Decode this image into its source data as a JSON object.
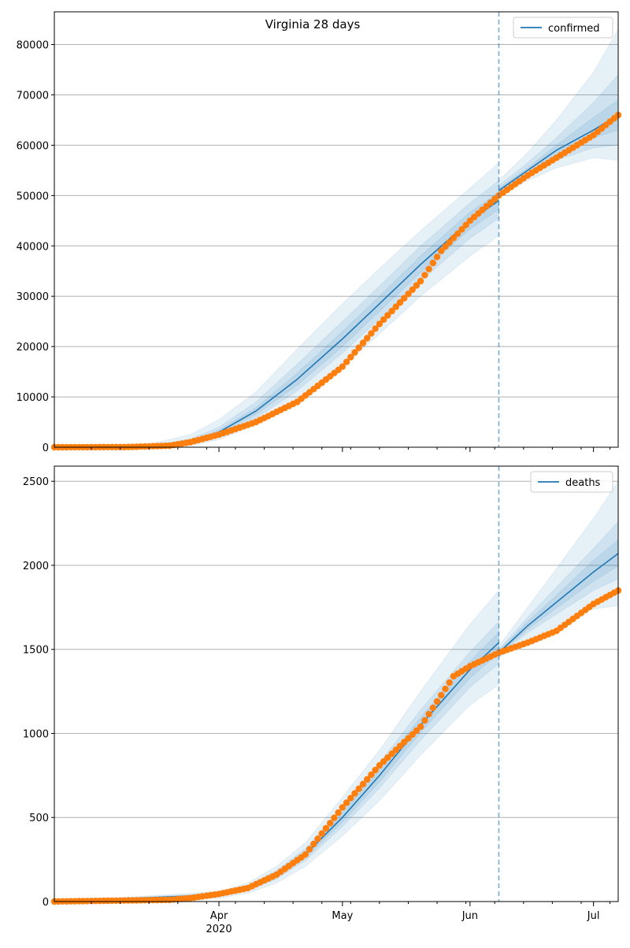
{
  "figure": {
    "title": "Virginia 28 days"
  },
  "colors": {
    "model_line": "#1f77b4",
    "observed_points": "#ff7f0e",
    "band": "#1f77b4",
    "grid": "#b0b0b0",
    "cutoff_line": "#1f77b4",
    "axes": "#000000"
  },
  "chart_data": [
    {
      "type": "line",
      "legend_label": "confirmed",
      "legend_position": "upper right",
      "grid": "horizontal",
      "x_range": [
        "2020-02-21",
        "2020-07-07"
      ],
      "ylim": [
        0,
        86500
      ],
      "y_ticks": [
        0,
        10000,
        20000,
        30000,
        40000,
        50000,
        60000,
        70000,
        80000
      ],
      "y_tick_labels": [
        "0",
        "10000",
        "20000",
        "30000",
        "40000",
        "50000",
        "60000",
        "70000",
        "80000"
      ],
      "x_ticks": [],
      "cutoff_date": "2020-06-08",
      "model_fit": {
        "x": [
          "2020-02-21",
          "2020-03-15",
          "2020-03-25",
          "2020-04-01",
          "2020-04-10",
          "2020-04-20",
          "2020-05-01",
          "2020-05-10",
          "2020-05-20",
          "2020-06-01",
          "2020-06-08"
        ],
        "y": [
          0,
          150,
          1000,
          3000,
          7200,
          13500,
          21500,
          28500,
          36300,
          45000,
          49000
        ]
      },
      "projection": {
        "x": [
          "2020-06-08",
          "2020-06-15",
          "2020-06-22",
          "2020-07-01",
          "2020-07-07"
        ],
        "y": [
          51000,
          55000,
          59000,
          63000,
          66000
        ]
      },
      "uncertainty_bands": [
        {
          "level": "outer",
          "fit_lower": [
            0,
            0,
            300,
            1500,
            4500,
            9000,
            16000,
            22500,
            30000,
            38000,
            42000
          ],
          "fit_upper": [
            0,
            600,
            2500,
            5500,
            11000,
            19500,
            28500,
            35500,
            43000,
            51500,
            56500
          ],
          "proj_lower": [
            50000,
            53000,
            55500,
            57500,
            57000
          ],
          "proj_upper": [
            53000,
            58500,
            65000,
            74500,
            83000
          ]
        },
        {
          "level": "middle",
          "fit_lower": [
            0,
            50,
            600,
            2200,
            5800,
            11200,
            18700,
            25500,
            33000,
            41500,
            45500
          ],
          "fit_upper": [
            0,
            300,
            1600,
            4000,
            9000,
            16500,
            25000,
            32000,
            40000,
            48500,
            53000
          ],
          "proj_lower": [
            50500,
            54000,
            57000,
            59500,
            60000
          ],
          "proj_upper": [
            52000,
            56500,
            61500,
            68500,
            74000
          ]
        },
        {
          "level": "inner",
          "fit_lower": [
            0,
            100,
            800,
            2600,
            6500,
            12300,
            20000,
            27000,
            34700,
            43300,
            47300
          ],
          "fit_upper": [
            0,
            200,
            1200,
            3400,
            7900,
            14700,
            23000,
            30000,
            38000,
            46700,
            50700
          ],
          "proj_lower": [
            50800,
            54500,
            58000,
            61500,
            63000
          ],
          "proj_upper": [
            51500,
            55500,
            60000,
            65500,
            69000
          ]
        }
      ],
      "observed": {
        "x": [
          "2020-02-21",
          "2020-03-10",
          "2020-03-20",
          "2020-03-25",
          "2020-04-01",
          "2020-04-10",
          "2020-04-20",
          "2020-05-01",
          "2020-05-10",
          "2020-05-20",
          "2020-05-25",
          "2020-06-01",
          "2020-06-08",
          "2020-06-15",
          "2020-06-22",
          "2020-07-01",
          "2020-07-07"
        ],
        "y": [
          0,
          40,
          300,
          1000,
          2500,
          5000,
          9000,
          16000,
          24500,
          33000,
          39000,
          45000,
          50000,
          54000,
          57500,
          62000,
          66000
        ]
      }
    },
    {
      "type": "line",
      "legend_label": "deaths",
      "legend_position": "upper right",
      "grid": "horizontal",
      "x_range": [
        "2020-02-21",
        "2020-07-07"
      ],
      "ylim": [
        0,
        2590
      ],
      "y_ticks": [
        0,
        500,
        1000,
        1500,
        2000,
        2500
      ],
      "y_tick_labels": [
        "0",
        "500",
        "1000",
        "1500",
        "2000",
        "2500"
      ],
      "x_ticks": [
        "2020-04-01",
        "2020-05-01",
        "2020-06-01",
        "2020-07-01"
      ],
      "x_tick_labels": [
        "Apr\n2020",
        "May",
        "Jun",
        "Jul"
      ],
      "cutoff_date": "2020-06-08",
      "model_fit": {
        "x": [
          "2020-02-21",
          "2020-04-01",
          "2020-04-08",
          "2020-04-15",
          "2020-04-22",
          "2020-05-01",
          "2020-05-10",
          "2020-05-20",
          "2020-06-01",
          "2020-06-08"
        ],
        "y": [
          0,
          40,
          80,
          160,
          280,
          500,
          750,
          1050,
          1380,
          1540
        ]
      },
      "projection": {
        "x": [
          "2020-06-08",
          "2020-06-15",
          "2020-06-22",
          "2020-07-01",
          "2020-07-07"
        ],
        "y": [
          1480,
          1640,
          1780,
          1960,
          2070
        ]
      },
      "uncertainty_bands": [
        {
          "level": "outer",
          "fit_lower": [
            0,
            20,
            50,
            110,
            210,
            390,
            600,
            870,
            1170,
            1290
          ],
          "fit_upper": [
            0,
            60,
            110,
            210,
            350,
            620,
            900,
            1250,
            1650,
            1850
          ],
          "proj_lower": [
            1450,
            1560,
            1640,
            1740,
            1760
          ],
          "proj_upper": [
            1520,
            1750,
            1980,
            2280,
            2500
          ]
        },
        {
          "level": "middle",
          "fit_lower": [
            0,
            30,
            65,
            135,
            245,
            445,
            675,
            960,
            1275,
            1415
          ],
          "fit_upper": [
            0,
            50,
            95,
            185,
            315,
            555,
            825,
            1140,
            1485,
            1665
          ],
          "proj_lower": [
            1465,
            1600,
            1710,
            1850,
            1920
          ],
          "proj_upper": [
            1500,
            1690,
            1870,
            2100,
            2260
          ]
        },
        {
          "level": "inner",
          "fit_lower": [
            0,
            35,
            72,
            147,
            262,
            472,
            712,
            1005,
            1330,
            1477
          ],
          "fit_upper": [
            0,
            45,
            88,
            173,
            298,
            528,
            788,
            1095,
            1430,
            1603
          ],
          "proj_lower": [
            1472,
            1620,
            1745,
            1905,
            1995
          ],
          "proj_upper": [
            1490,
            1665,
            1820,
            2030,
            2150
          ]
        }
      ],
      "observed": {
        "x": [
          "2020-02-21",
          "2020-03-20",
          "2020-03-25",
          "2020-04-01",
          "2020-04-08",
          "2020-04-15",
          "2020-04-22",
          "2020-05-01",
          "2020-05-10",
          "2020-05-20",
          "2020-05-28",
          "2020-06-01",
          "2020-06-08",
          "2020-06-15",
          "2020-06-22",
          "2020-07-01",
          "2020-07-07"
        ],
        "y": [
          0,
          10,
          20,
          45,
          80,
          160,
          280,
          560,
          810,
          1040,
          1340,
          1400,
          1480,
          1540,
          1610,
          1770,
          1850
        ]
      }
    }
  ]
}
